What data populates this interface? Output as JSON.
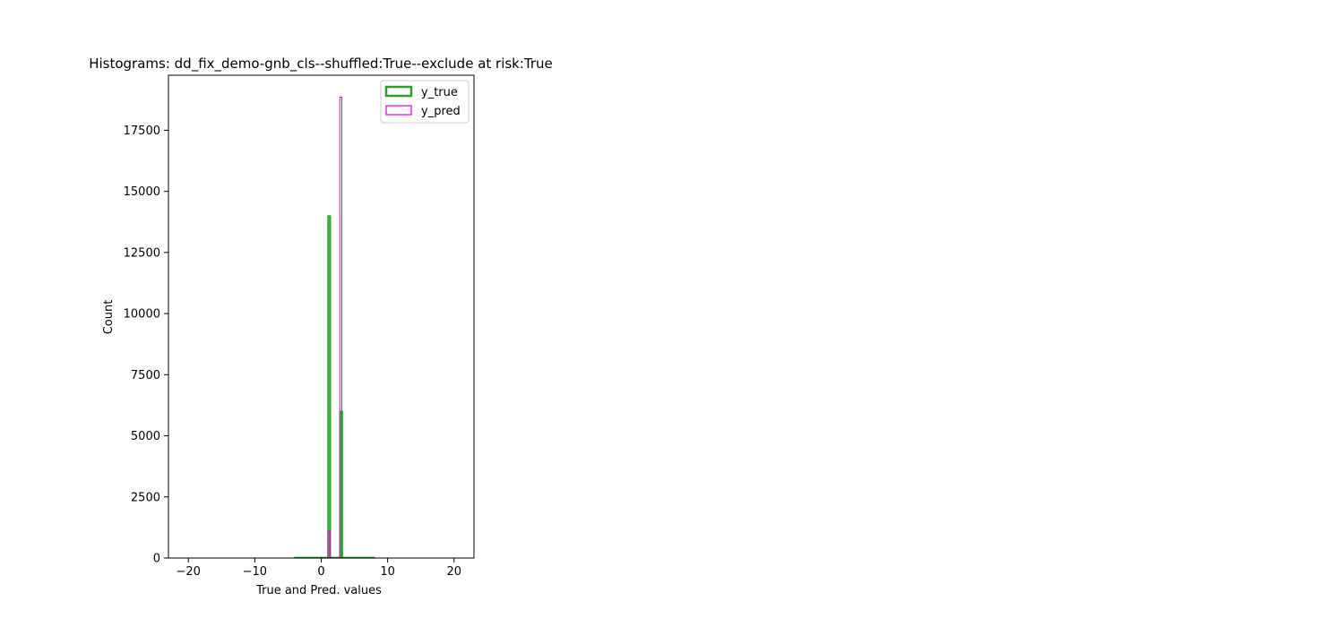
{
  "chart_data": {
    "type": "bar",
    "title": "Histograms: dd_fix_demo-gnb_cls--shuffled:True--exclude at risk:True",
    "xlabel": "True and Pred. values",
    "ylabel": "Count",
    "xlim": [
      -23,
      23
    ],
    "ylim": [
      0,
      19750
    ],
    "xticks": [
      -20,
      -10,
      0,
      10,
      20
    ],
    "xtick_labels": [
      "−20",
      "−10",
      "0",
      "10",
      "20"
    ],
    "yticks": [
      0,
      2500,
      5000,
      7500,
      10000,
      12500,
      15000,
      17500
    ],
    "ytick_labels": [
      "0",
      "2500",
      "5000",
      "7500",
      "10000",
      "12500",
      "15000",
      "17500"
    ],
    "grid": false,
    "legend_placement": "top-right",
    "series": [
      {
        "name": "y_true",
        "style": "step",
        "color": "#2ca02c",
        "bins": [
          {
            "x0": -4,
            "x1": 0,
            "count": 30
          },
          {
            "x0": 0,
            "x1": 1.0,
            "count": 30
          },
          {
            "x0": 1.0,
            "x1": 1.4,
            "count": 14000
          },
          {
            "x0": 1.4,
            "x1": 2.8,
            "count": 30
          },
          {
            "x0": 2.8,
            "x1": 3.2,
            "count": 6000
          },
          {
            "x0": 3.2,
            "x1": 8,
            "count": 30
          }
        ]
      },
      {
        "name": "y_pred",
        "style": "step",
        "color": "#e000e0",
        "bins": [
          {
            "x0": 1.0,
            "x1": 1.3,
            "count": 1100
          },
          {
            "x0": 2.8,
            "x1": 3.1,
            "count": 18850
          }
        ]
      }
    ]
  }
}
